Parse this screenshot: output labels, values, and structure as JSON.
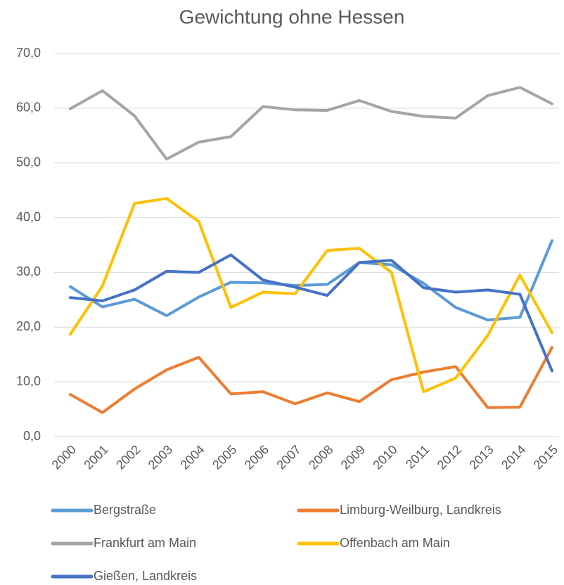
{
  "chart_data": {
    "type": "line",
    "title": "Gewichtung ohne Hessen",
    "categories": [
      "2000",
      "2001",
      "2002",
      "2003",
      "2004",
      "2005",
      "2006",
      "2007",
      "2008",
      "2009",
      "2010",
      "2011",
      "2012",
      "2013",
      "2014",
      "2015"
    ],
    "series": [
      {
        "name": "Bergstraße",
        "color": "#5b9bd5",
        "values": [
          27.4,
          23.7,
          25.1,
          22.1,
          25.5,
          28.2,
          28.1,
          27.6,
          27.8,
          31.8,
          31.4,
          28.0,
          23.6,
          21.3,
          21.8,
          35.8
        ]
      },
      {
        "name": "Limburg-Weilburg, Landkreis",
        "color": "#ed7d31",
        "values": [
          7.7,
          4.4,
          8.7,
          12.2,
          14.5,
          7.8,
          8.2,
          6.0,
          8.0,
          6.4,
          10.4,
          11.8,
          12.8,
          5.3,
          5.4,
          16.3
        ]
      },
      {
        "name": "Frankfurt am Main",
        "color": "#a5a5a5",
        "values": [
          59.9,
          63.2,
          58.6,
          50.7,
          53.8,
          54.8,
          60.3,
          59.7,
          59.6,
          61.4,
          59.4,
          58.5,
          58.2,
          62.3,
          63.8,
          60.8
        ]
      },
      {
        "name": "Offenbach am Main",
        "color": "#ffc000",
        "values": [
          18.7,
          27.5,
          42.6,
          43.5,
          39.3,
          23.6,
          26.4,
          26.1,
          34.0,
          34.4,
          30.0,
          8.2,
          10.7,
          18.5,
          29.5,
          19.0
        ]
      },
      {
        "name": "Gießen, Landkreis",
        "color": "#4472c4",
        "values": [
          25.4,
          24.8,
          26.8,
          30.2,
          30.0,
          33.2,
          28.6,
          27.3,
          25.8,
          31.8,
          32.2,
          27.2,
          26.4,
          26.8,
          26.0,
          12.0
        ]
      }
    ],
    "ylim": [
      0,
      70
    ],
    "yticks": [
      {
        "value": 0,
        "label": "0,0"
      },
      {
        "value": 10,
        "label": "10,0"
      },
      {
        "value": 20,
        "label": "20,0"
      },
      {
        "value": 30,
        "label": "30,0"
      },
      {
        "value": 40,
        "label": "40,0"
      },
      {
        "value": 50,
        "label": "50,0"
      },
      {
        "value": 60,
        "label": "60,0"
      },
      {
        "value": 70,
        "label": "70,0"
      }
    ],
    "grid": true
  }
}
